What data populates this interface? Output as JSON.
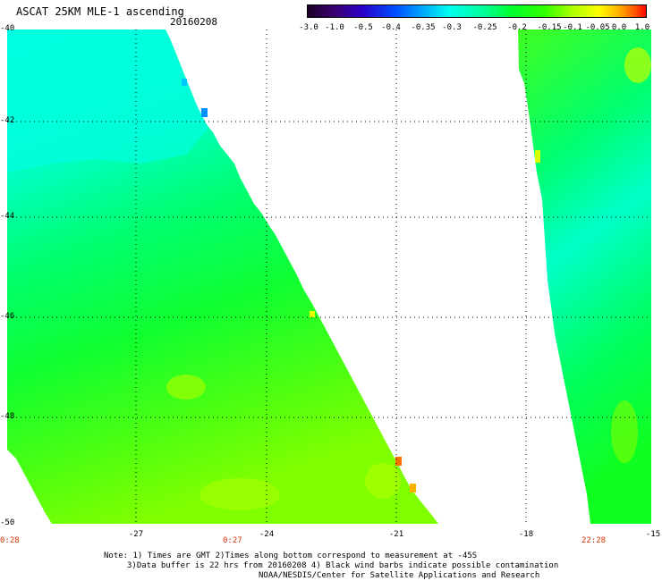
{
  "header": {
    "title": "ASCAT 25KM MLE-1 ascending",
    "date": "20160208"
  },
  "colorbar": {
    "ticks": [
      "-3.0",
      "-1.0",
      "-0.5",
      "-0.4",
      "-0.35",
      "-0.3",
      "-0.25",
      "-0.2",
      "-0.15",
      "-0.1",
      "-0.05",
      "0.0",
      "1.0"
    ]
  },
  "axes": {
    "y_ticks": [
      "-40",
      "-42",
      "-44",
      "-46",
      "-48",
      "-50"
    ],
    "x_ticks": [
      "-27",
      "-24",
      "-21",
      "-18",
      "-15"
    ]
  },
  "times": [
    "0:28",
    "0:27",
    "22:28"
  ],
  "notes": {
    "line1": "Note: 1) Times are GMT 2)Times along bottom correspond to measurement at -45S",
    "line2": "3)Data buffer is 22 hrs from 20160208 4) Black wind barbs indicate possible contamination",
    "line3": "NOAA/NESDIS/Center for Satellite Applications and Research"
  },
  "colors": {
    "cyan": "#00ffe0",
    "green": "#00ff40",
    "yellowgreen": "#a0ff00",
    "grid": "#000000",
    "time_label": "#d83000"
  }
}
